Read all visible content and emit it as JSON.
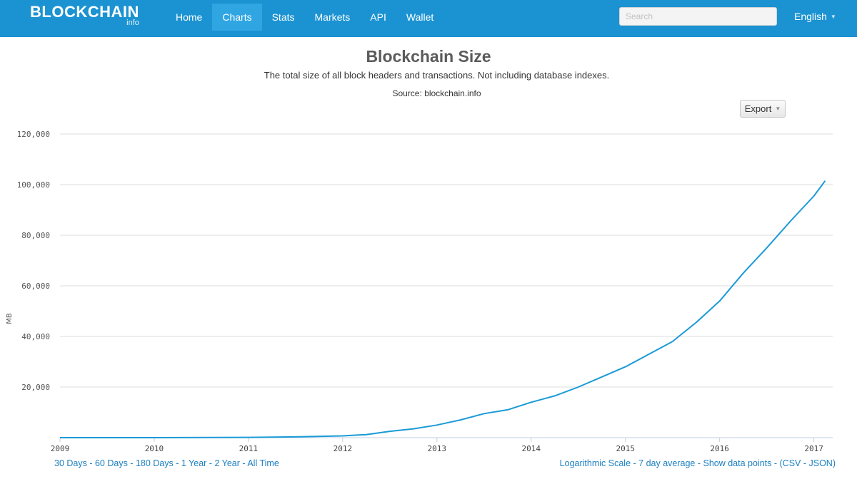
{
  "brand": {
    "name": "BLOCKCHAIN",
    "sub": "info"
  },
  "nav": {
    "items": [
      "Home",
      "Charts",
      "Stats",
      "Markets",
      "API",
      "Wallet"
    ],
    "active": "Charts"
  },
  "search": {
    "placeholder": "Search"
  },
  "language": {
    "label": "English"
  },
  "export": {
    "label": "Export"
  },
  "bottom_links": {
    "ranges": [
      "30 Days",
      "60 Days",
      "180 Days",
      "1 Year",
      "2 Year",
      "All Time"
    ],
    "options": [
      "Logarithmic Scale",
      "7 day average",
      "Show data points"
    ],
    "formats": [
      "CSV",
      "JSON"
    ]
  },
  "colors": {
    "navbar": "#1b93d2",
    "nav_active": "#2fa5e2",
    "series": "#1a9ad6",
    "link": "#1a7fc0"
  },
  "chart_data": {
    "type": "line",
    "title": "Blockchain Size",
    "subtitle": "The total size of all block headers and transactions. Not including database indexes.",
    "source": "Source: blockchain.info",
    "xlabel": "",
    "ylabel": "MB",
    "xlim": [
      2009.0,
      2017.2
    ],
    "ylim": [
      0,
      120000
    ],
    "x_ticks": [
      "2009",
      "2010",
      "2011",
      "2012",
      "2013",
      "2014",
      "2015",
      "2016",
      "2017"
    ],
    "y_ticks": [
      "20,000",
      "40,000",
      "60,000",
      "80,000",
      "100,000",
      "120,000"
    ],
    "grid": true,
    "series": [
      {
        "name": "",
        "x": [
          2009.0,
          2010.0,
          2011.0,
          2011.5,
          2012.0,
          2012.25,
          2012.5,
          2012.75,
          2013.0,
          2013.25,
          2013.5,
          2013.75,
          2014.0,
          2014.25,
          2014.5,
          2014.75,
          2015.0,
          2015.25,
          2015.5,
          2015.6,
          2015.75,
          2016.0,
          2016.25,
          2016.5,
          2016.75,
          2017.0,
          2017.12
        ],
        "y": [
          0,
          10,
          100,
          300,
          700,
          1200,
          2500,
          3500,
          5000,
          7000,
          9500,
          11000,
          14000,
          16500,
          20000,
          24000,
          28000,
          33000,
          38000,
          41000,
          45500,
          54000,
          65000,
          75000,
          85500,
          95500,
          101500
        ]
      }
    ]
  }
}
